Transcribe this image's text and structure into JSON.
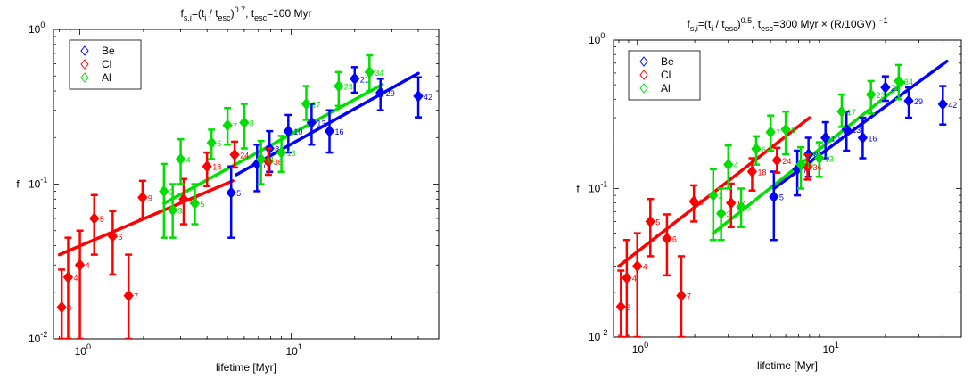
{
  "chart_data": [
    {
      "type": "scatter",
      "title_parts": {
        "main": "f",
        "main_sub": "s,i",
        "eq1": "=(t",
        "eq1_sub": "i",
        "eq2": " / t",
        "eq2_sub": "esc",
        "eq3": ")",
        "eq3_sup": "0.7",
        "eq4": ",  t",
        "eq4_sub": "esc",
        "eq5": "=100 Myr"
      },
      "xlabel": "lifetime [Myr]",
      "ylabel": "f",
      "xscale": "log",
      "yscale": "log",
      "xlim": [
        0.75,
        50
      ],
      "ylim": [
        0.01,
        1
      ],
      "xticks": [
        {
          "value": 1,
          "base": "10",
          "exp": "0"
        },
        {
          "value": 10,
          "base": "10",
          "exp": "1"
        }
      ],
      "yticks": [
        {
          "value": 0.01,
          "base": "10",
          "exp": "-2"
        },
        {
          "value": 0.1,
          "base": "10",
          "exp": "-1"
        },
        {
          "value": 1,
          "base": "10",
          "exp": "0"
        }
      ],
      "grid": false,
      "legend_position": "top-left",
      "series": [
        {
          "name": "Be",
          "color": "#0000ff",
          "points": [
            {
              "x": 5.2,
              "y": 0.088,
              "lo": 0.045,
              "hi": 0.13,
              "label": "5"
            },
            {
              "x": 6.9,
              "y": 0.135,
              "lo": 0.09,
              "hi": 0.18,
              "label": "7"
            },
            {
              "x": 7.9,
              "y": 0.17,
              "lo": 0.12,
              "hi": 0.22,
              "label": "8"
            },
            {
              "x": 9.7,
              "y": 0.22,
              "lo": 0.16,
              "hi": 0.28,
              "label": "10"
            },
            {
              "x": 12.5,
              "y": 0.25,
              "lo": 0.18,
              "hi": 0.33,
              "label": "13"
            },
            {
              "x": 15.2,
              "y": 0.22,
              "lo": 0.16,
              "hi": 0.3,
              "label": "16"
            },
            {
              "x": 20,
              "y": 0.48,
              "lo": 0.39,
              "hi": 0.57,
              "label": "21"
            },
            {
              "x": 26.5,
              "y": 0.39,
              "lo": 0.3,
              "hi": 0.48,
              "label": "29"
            },
            {
              "x": 40,
              "y": 0.37,
              "lo": 0.27,
              "hi": 0.49,
              "label": "42"
            }
          ],
          "fit": {
            "x": [
              5.5,
              40
            ],
            "y": [
              0.115,
              0.52
            ]
          }
        },
        {
          "name": "Cl",
          "color": "#ff0000",
          "points": [
            {
              "x": 0.82,
              "y": 0.016,
              "lo": 0.01,
              "hi": 0.028,
              "label": "3"
            },
            {
              "x": 0.88,
              "y": 0.025,
              "lo": 0.01,
              "hi": 0.045,
              "label": "4"
            },
            {
              "x": 1.0,
              "y": 0.03,
              "lo": 0.01,
              "hi": 0.05,
              "label": "4"
            },
            {
              "x": 1.17,
              "y": 0.06,
              "lo": 0.035,
              "hi": 0.085,
              "label": "5"
            },
            {
              "x": 1.43,
              "y": 0.046,
              "lo": 0.026,
              "hi": 0.067,
              "label": "6"
            },
            {
              "x": 1.7,
              "y": 0.019,
              "lo": 0.01,
              "hi": 0.035,
              "label": "7"
            },
            {
              "x": 1.98,
              "y": 0.082,
              "lo": 0.06,
              "hi": 0.105,
              "label": "9"
            },
            {
              "x": 3.1,
              "y": 0.08,
              "lo": 0.055,
              "hi": 0.108,
              "label": "17"
            },
            {
              "x": 4.0,
              "y": 0.13,
              "lo": 0.097,
              "hi": 0.16,
              "label": "18"
            },
            {
              "x": 5.4,
              "y": 0.155,
              "lo": 0.128,
              "hi": 0.188,
              "label": "24"
            },
            {
              "x": 7.8,
              "y": 0.14,
              "lo": 0.115,
              "hi": 0.17,
              "label": "36"
            }
          ],
          "fit": {
            "x": [
              0.8,
              5.3
            ],
            "y": [
              0.035,
              0.105
            ]
          }
        },
        {
          "name": "Al",
          "color": "#00e000",
          "points": [
            {
              "x": 2.5,
              "y": 0.09,
              "lo": 0.045,
              "hi": 0.135,
              "label": "2"
            },
            {
              "x": 2.75,
              "y": 0.068,
              "lo": 0.045,
              "hi": 0.1,
              "label": "3"
            },
            {
              "x": 3.0,
              "y": 0.145,
              "lo": 0.1,
              "hi": 0.195,
              "label": "4"
            },
            {
              "x": 3.5,
              "y": 0.075,
              "lo": 0.055,
              "hi": 0.1,
              "label": "5"
            },
            {
              "x": 4.2,
              "y": 0.185,
              "lo": 0.145,
              "hi": 0.225,
              "label": "6"
            },
            {
              "x": 5.0,
              "y": 0.24,
              "lo": 0.18,
              "hi": 0.31,
              "label": "7"
            },
            {
              "x": 6.0,
              "y": 0.25,
              "lo": 0.17,
              "hi": 0.33,
              "label": "8"
            },
            {
              "x": 7.2,
              "y": 0.145,
              "lo": 0.1,
              "hi": 0.19,
              "label": "11"
            },
            {
              "x": 9.0,
              "y": 0.16,
              "lo": 0.12,
              "hi": 0.205,
              "label": "13"
            },
            {
              "x": 11.8,
              "y": 0.33,
              "lo": 0.26,
              "hi": 0.43,
              "label": "17"
            },
            {
              "x": 16.8,
              "y": 0.43,
              "lo": 0.32,
              "hi": 0.53,
              "label": "23"
            },
            {
              "x": 23.5,
              "y": 0.53,
              "lo": 0.4,
              "hi": 0.68,
              "label": "34"
            }
          ],
          "fit": {
            "x": [
              2.5,
              27
            ],
            "y": [
              0.075,
              0.44
            ]
          }
        }
      ]
    },
    {
      "type": "scatter",
      "title_parts": {
        "main": "f",
        "main_sub": "s,i",
        "eq1": "=(t",
        "eq1_sub": "i",
        "eq2": " / t",
        "eq2_sub": "esc",
        "eq3": ")",
        "eq3_sup": "0.5",
        "eq4": ",  t",
        "eq4_sub": "esc",
        "eq5": "=300 Myr × (R/10GV) ",
        "eq5_sup": "−1"
      },
      "xlabel": "lifetime [Myr]",
      "ylabel": "f",
      "xscale": "log",
      "yscale": "log",
      "xlim": [
        0.75,
        50
      ],
      "ylim": [
        0.01,
        1
      ],
      "xticks": [
        {
          "value": 1,
          "base": "10",
          "exp": "0"
        },
        {
          "value": 10,
          "base": "10",
          "exp": "1"
        }
      ],
      "yticks": [
        {
          "value": 0.01,
          "base": "10",
          "exp": "-2"
        },
        {
          "value": 0.1,
          "base": "10",
          "exp": "-1"
        },
        {
          "value": 1,
          "base": "10",
          "exp": "0"
        }
      ],
      "grid": false,
      "legend_position": "top-left",
      "series": [
        {
          "name": "Be",
          "color": "#0000ff",
          "points": [
            {
              "x": 5.2,
              "y": 0.088,
              "lo": 0.045,
              "hi": 0.13,
              "label": "5"
            },
            {
              "x": 6.9,
              "y": 0.135,
              "lo": 0.09,
              "hi": 0.18,
              "label": "7"
            },
            {
              "x": 7.9,
              "y": 0.17,
              "lo": 0.12,
              "hi": 0.22,
              "label": "8"
            },
            {
              "x": 9.7,
              "y": 0.22,
              "lo": 0.16,
              "hi": 0.28,
              "label": "10"
            },
            {
              "x": 12.5,
              "y": 0.25,
              "lo": 0.18,
              "hi": 0.33,
              "label": "13"
            },
            {
              "x": 15.2,
              "y": 0.22,
              "lo": 0.16,
              "hi": 0.3,
              "label": "16"
            },
            {
              "x": 20,
              "y": 0.48,
              "lo": 0.39,
              "hi": 0.57,
              "label": "21"
            },
            {
              "x": 26.5,
              "y": 0.39,
              "lo": 0.3,
              "hi": 0.48,
              "label": "29"
            },
            {
              "x": 40,
              "y": 0.37,
              "lo": 0.27,
              "hi": 0.49,
              "label": "42"
            }
          ],
          "fit": {
            "x": [
              5.2,
              42
            ],
            "y": [
              0.1,
              0.72
            ]
          }
        },
        {
          "name": "Cl",
          "color": "#ff0000",
          "points": [
            {
              "x": 0.82,
              "y": 0.016,
              "lo": 0.01,
              "hi": 0.028,
              "label": "3"
            },
            {
              "x": 0.88,
              "y": 0.025,
              "lo": 0.01,
              "hi": 0.045,
              "label": "4"
            },
            {
              "x": 1.0,
              "y": 0.03,
              "lo": 0.01,
              "hi": 0.05,
              "label": "4"
            },
            {
              "x": 1.17,
              "y": 0.06,
              "lo": 0.035,
              "hi": 0.085,
              "label": "5"
            },
            {
              "x": 1.43,
              "y": 0.046,
              "lo": 0.026,
              "hi": 0.067,
              "label": "6"
            },
            {
              "x": 1.7,
              "y": 0.019,
              "lo": 0.01,
              "hi": 0.035,
              "label": "7"
            },
            {
              "x": 1.98,
              "y": 0.082,
              "lo": 0.06,
              "hi": 0.105,
              "label": "9"
            },
            {
              "x": 3.1,
              "y": 0.08,
              "lo": 0.055,
              "hi": 0.108,
              "label": "17"
            },
            {
              "x": 4.0,
              "y": 0.13,
              "lo": 0.097,
              "hi": 0.16,
              "label": "18"
            },
            {
              "x": 5.4,
              "y": 0.155,
              "lo": 0.128,
              "hi": 0.188,
              "label": "24"
            },
            {
              "x": 7.8,
              "y": 0.14,
              "lo": 0.115,
              "hi": 0.17,
              "label": "36"
            }
          ],
          "fit": {
            "x": [
              0.8,
              8
            ],
            "y": [
              0.03,
              0.3
            ]
          }
        },
        {
          "name": "Al",
          "color": "#00e000",
          "points": [
            {
              "x": 2.5,
              "y": 0.09,
              "lo": 0.045,
              "hi": 0.135,
              "label": "2"
            },
            {
              "x": 2.75,
              "y": 0.068,
              "lo": 0.045,
              "hi": 0.1,
              "label": "3"
            },
            {
              "x": 3.0,
              "y": 0.145,
              "lo": 0.1,
              "hi": 0.195,
              "label": "4"
            },
            {
              "x": 3.5,
              "y": 0.075,
              "lo": 0.055,
              "hi": 0.1,
              "label": "5"
            },
            {
              "x": 4.2,
              "y": 0.185,
              "lo": 0.145,
              "hi": 0.225,
              "label": "6"
            },
            {
              "x": 5.0,
              "y": 0.24,
              "lo": 0.18,
              "hi": 0.31,
              "label": "7"
            },
            {
              "x": 6.0,
              "y": 0.25,
              "lo": 0.17,
              "hi": 0.33,
              "label": "8"
            },
            {
              "x": 7.2,
              "y": 0.145,
              "lo": 0.1,
              "hi": 0.19,
              "label": "11"
            },
            {
              "x": 9.0,
              "y": 0.16,
              "lo": 0.12,
              "hi": 0.205,
              "label": "13"
            },
            {
              "x": 11.8,
              "y": 0.33,
              "lo": 0.26,
              "hi": 0.43,
              "label": "17"
            },
            {
              "x": 16.8,
              "y": 0.43,
              "lo": 0.32,
              "hi": 0.53,
              "label": "23"
            },
            {
              "x": 23.5,
              "y": 0.53,
              "lo": 0.4,
              "hi": 0.68,
              "label": "34"
            }
          ],
          "fit": {
            "x": [
              2.5,
              25
            ],
            "y": [
              0.05,
              0.52
            ]
          }
        }
      ]
    }
  ]
}
